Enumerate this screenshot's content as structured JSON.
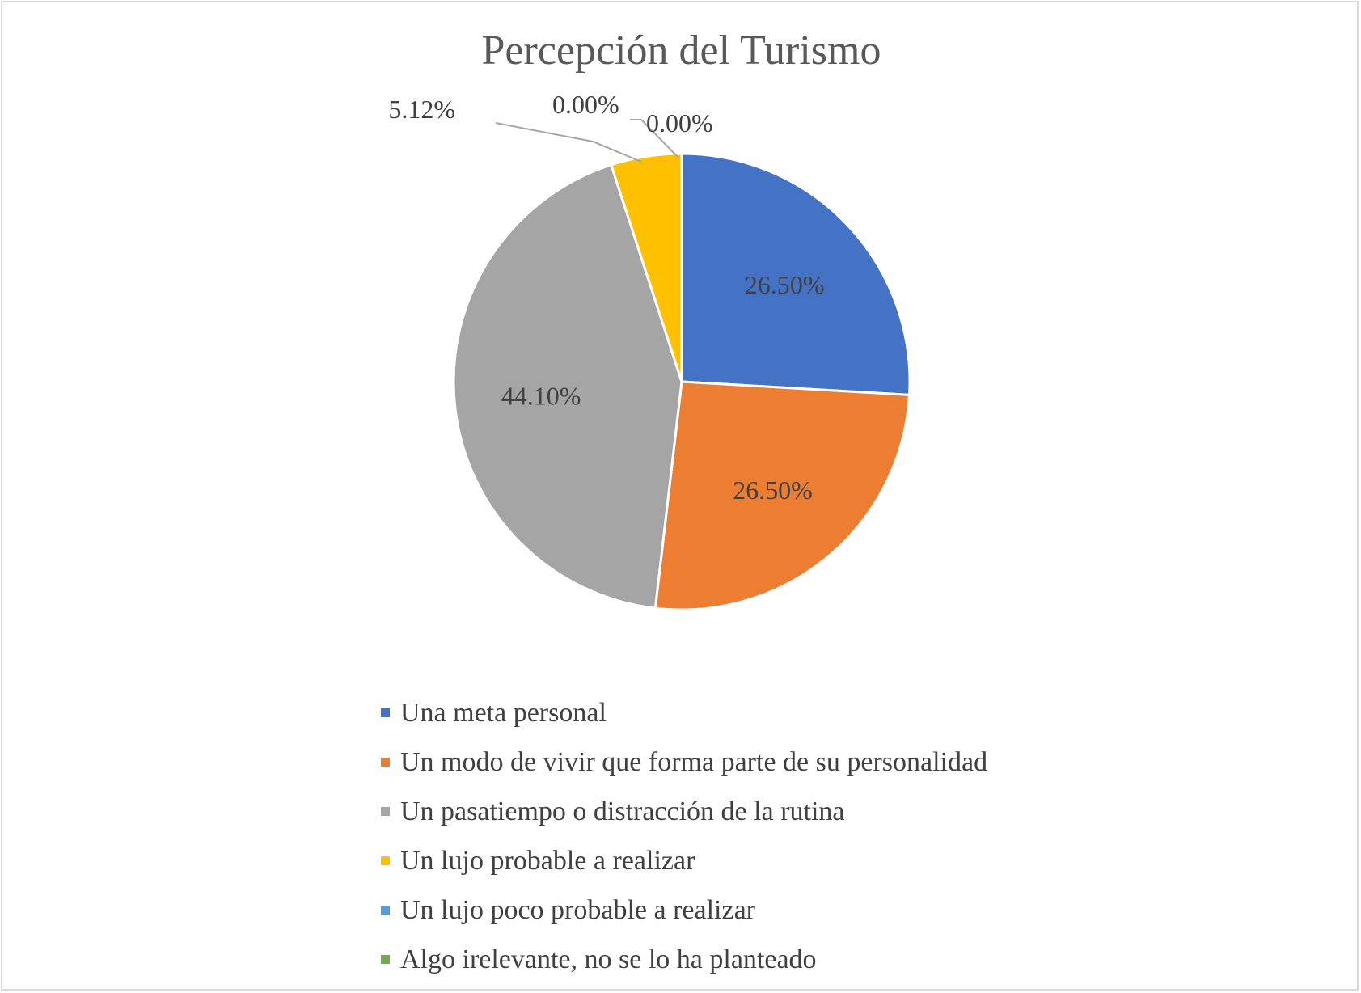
{
  "chart_data": {
    "type": "pie",
    "title": "Percepción del Turismo",
    "categories": [
      "Una meta personal",
      "Un modo de vivir que forma parte de su personalidad",
      "Un pasatiempo o distracción de la rutina",
      "Un lujo probable a realizar",
      "Un lujo poco probable a realizar",
      "Algo irelevante, no se lo ha planteado"
    ],
    "values": [
      26.5,
      26.5,
      44.1,
      5.12,
      0.0,
      0.0
    ],
    "data_labels": [
      "26.50%",
      "26.50%",
      "44.10%",
      "5.12%",
      "0.00%",
      "0.00%"
    ],
    "colors": [
      "#4472c4",
      "#ed7d31",
      "#a5a5a5",
      "#ffc000",
      "#5b9bd5",
      "#70ad47"
    ],
    "legend": "bottom"
  }
}
